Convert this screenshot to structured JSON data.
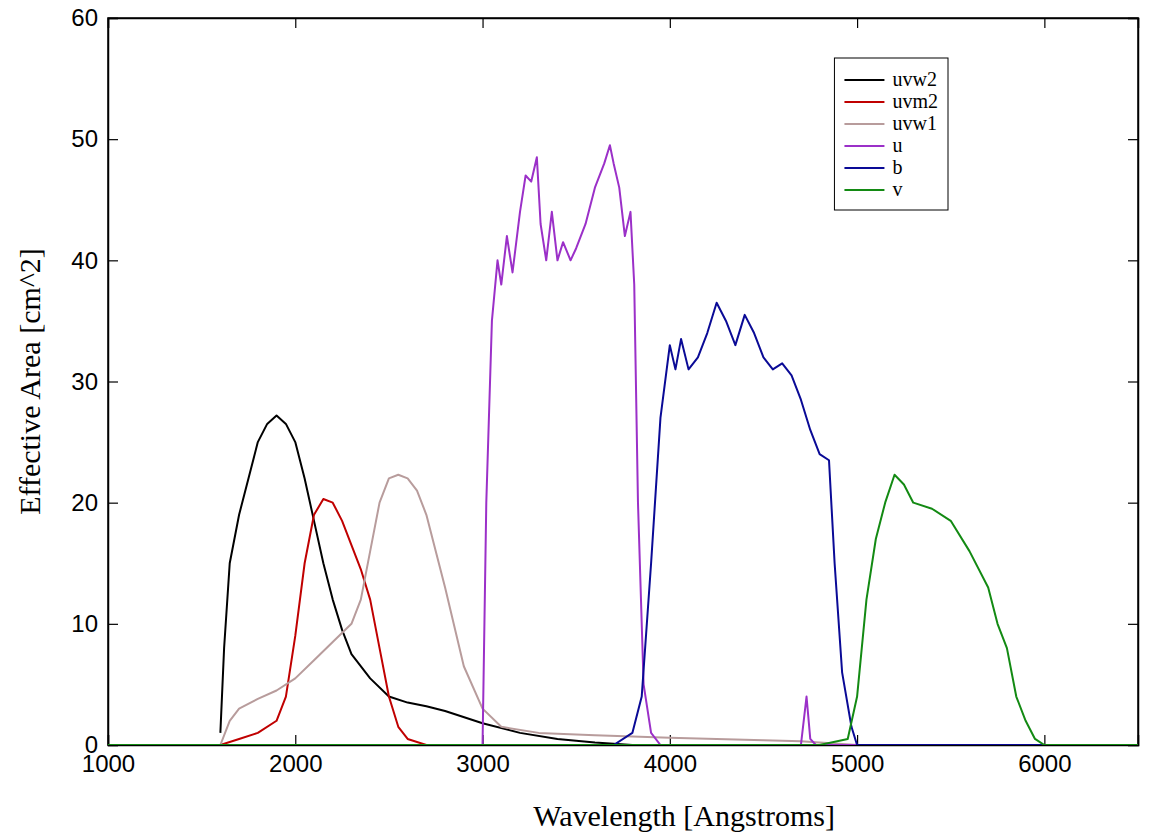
{
  "chart_data": {
    "type": "line",
    "x_label": "Wavelength [Angstroms]",
    "y_label": "Effective Area [cm^2]",
    "xlim": [
      1000,
      6500
    ],
    "xticks": [
      1000,
      2000,
      3000,
      4000,
      5000,
      6000
    ],
    "ylim": [
      0,
      60
    ],
    "yticks": [
      0,
      10,
      20,
      30,
      40,
      50,
      60
    ],
    "grid": false,
    "legend": "upper right",
    "series": [
      {
        "name": "uvw2",
        "color": "#000000",
        "x": [
          1600,
          1620,
          1650,
          1700,
          1750,
          1800,
          1850,
          1900,
          1950,
          2000,
          2050,
          2100,
          2150,
          2200,
          2250,
          2300,
          2400,
          2500,
          2600,
          2700,
          2800,
          3000,
          3200,
          3400,
          3600,
          3800,
          6500
        ],
        "values": [
          1,
          8,
          15,
          19,
          22,
          25,
          26.5,
          27.2,
          26.5,
          25,
          22,
          18.5,
          15,
          12,
          9.5,
          7.5,
          5.5,
          4,
          3.5,
          3.2,
          2.8,
          1.8,
          1,
          0.5,
          0.2,
          0,
          0
        ]
      },
      {
        "name": "uvm2",
        "color": "#c00000",
        "x": [
          1600,
          1700,
          1800,
          1900,
          1950,
          2000,
          2050,
          2100,
          2150,
          2200,
          2250,
          2300,
          2350,
          2400,
          2450,
          2500,
          2550,
          2600,
          2700,
          6500
        ],
        "values": [
          0,
          0.5,
          1,
          2,
          4,
          9,
          15,
          19,
          20.3,
          20,
          18.5,
          16.5,
          14.5,
          12,
          8,
          4,
          1.5,
          0.5,
          0,
          0
        ]
      },
      {
        "name": "uvw1",
        "color": "#b89c9c",
        "x": [
          1600,
          1650,
          1700,
          1800,
          1900,
          2000,
          2100,
          2200,
          2300,
          2350,
          2400,
          2450,
          2500,
          2550,
          2600,
          2650,
          2700,
          2800,
          2900,
          3000,
          3100,
          3300,
          3600,
          4000,
          4500,
          4700,
          5000,
          6500
        ],
        "values": [
          0,
          2,
          3,
          3.8,
          4.5,
          5.5,
          7,
          8.5,
          10,
          12,
          16,
          20,
          22,
          22.3,
          22,
          21,
          19,
          13,
          6.5,
          3,
          1.5,
          1,
          0.8,
          0.6,
          0.4,
          0.3,
          0,
          0
        ]
      },
      {
        "name": "u",
        "color": "#9b30c8",
        "x": [
          1000,
          3000,
          3020,
          3050,
          3080,
          3100,
          3130,
          3160,
          3200,
          3230,
          3260,
          3290,
          3310,
          3340,
          3370,
          3400,
          3430,
          3470,
          3500,
          3550,
          3600,
          3650,
          3680,
          3700,
          3730,
          3760,
          3790,
          3810,
          3830,
          3860,
          3900,
          3950,
          4700,
          4730,
          4750,
          4780,
          6500
        ],
        "values": [
          0,
          0,
          20,
          35,
          40,
          38,
          42,
          39,
          44,
          47,
          46.5,
          48.5,
          43,
          40,
          44,
          40,
          41.5,
          40,
          41,
          43,
          46,
          48,
          49.5,
          48,
          46,
          42,
          44,
          38,
          20,
          5,
          1,
          0,
          0,
          4,
          0.5,
          0,
          0
        ]
      },
      {
        "name": "b",
        "color": "#0a0a96",
        "x": [
          1000,
          3700,
          3800,
          3850,
          3900,
          3950,
          4000,
          4030,
          4060,
          4100,
          4150,
          4200,
          4250,
          4300,
          4350,
          4400,
          4450,
          4500,
          4550,
          4600,
          4650,
          4700,
          4750,
          4800,
          4850,
          4880,
          4920,
          4970,
          5000,
          6500
        ],
        "values": [
          0,
          0,
          1,
          4,
          15,
          27,
          33,
          31,
          33.5,
          31,
          32,
          34,
          36.5,
          35,
          33,
          35.5,
          34,
          32,
          31,
          31.5,
          30.5,
          28.5,
          26,
          24,
          23.5,
          15,
          6,
          1.5,
          0,
          0
        ]
      },
      {
        "name": "v",
        "color": "#138a13",
        "x": [
          1000,
          4800,
          4950,
          5000,
          5050,
          5100,
          5150,
          5200,
          5250,
          5300,
          5400,
          5500,
          5600,
          5700,
          5750,
          5800,
          5850,
          5900,
          5950,
          6000,
          6500
        ],
        "values": [
          0,
          0,
          0.5,
          4,
          12,
          17,
          20,
          22.3,
          21.5,
          20,
          19.5,
          18.5,
          16,
          13,
          10,
          8,
          4,
          2,
          0.5,
          0,
          0
        ]
      }
    ]
  }
}
